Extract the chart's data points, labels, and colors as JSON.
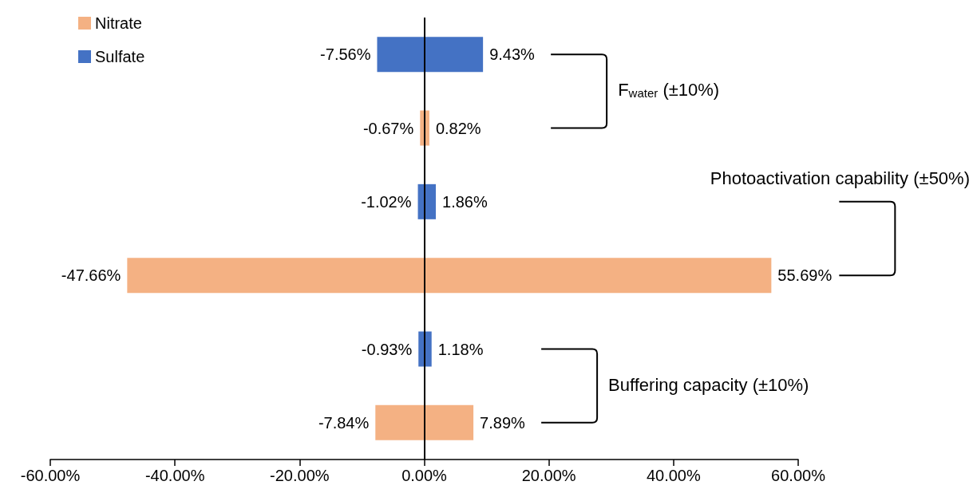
{
  "chart_data": {
    "type": "bar",
    "orientation": "horizontal",
    "stacked": true,
    "categories": [
      null,
      null,
      null,
      null,
      null,
      null
    ],
    "series": [
      {
        "name": "Nitrate",
        "color": "#f4b183",
        "values": [
          null,
          0.82,
          null,
          55.69,
          null,
          7.89
        ],
        "value_labels": [
          null,
          "0.82%",
          null,
          "55.69%",
          null,
          "7.89%"
        ]
      },
      {
        "color": "#f4b183",
        "values": [
          null,
          -0.67,
          null,
          -47.66,
          null,
          -7.84
        ],
        "value_labels": [
          null,
          "-0.67%",
          null,
          "-47.66%",
          null,
          "-7.84%"
        ]
      },
      {
        "name": "Sulfate",
        "color": "#4472c4",
        "values": [
          9.43,
          null,
          1.86,
          null,
          1.18,
          null
        ],
        "value_labels": [
          "9.43%",
          null,
          "1.86%",
          null,
          "1.18%",
          null
        ]
      },
      {
        "color": "#4472c4",
        "values": [
          -7.56,
          null,
          -1.02,
          null,
          -0.93,
          null
        ],
        "value_labels": [
          "-7.56%",
          null,
          "-1.02%",
          null,
          "-0.93%",
          null
        ]
      }
    ],
    "xlim": [
      -60,
      60
    ],
    "xticks": [
      {
        "value": -60,
        "label": "-60.00%"
      },
      {
        "value": -40,
        "label": "-40.00%"
      },
      {
        "value": -20,
        "label": "-20.00%"
      },
      {
        "value": 0,
        "label": "0.00%"
      },
      {
        "value": 20,
        "label": "20.00%"
      },
      {
        "value": 40,
        "label": "40.00%"
      },
      {
        "value": 60,
        "label": "60.00%"
      }
    ],
    "grid": false,
    "ref_lines": [
      {
        "axis": "x",
        "value": 0,
        "color": "#000000"
      }
    ],
    "legend": "top left",
    "annotations": [
      "F$_{water}$ (±10%)",
      "Photoactivation capability (±50%)",
      "Buffering capacity (±10%)"
    ]
  }
}
